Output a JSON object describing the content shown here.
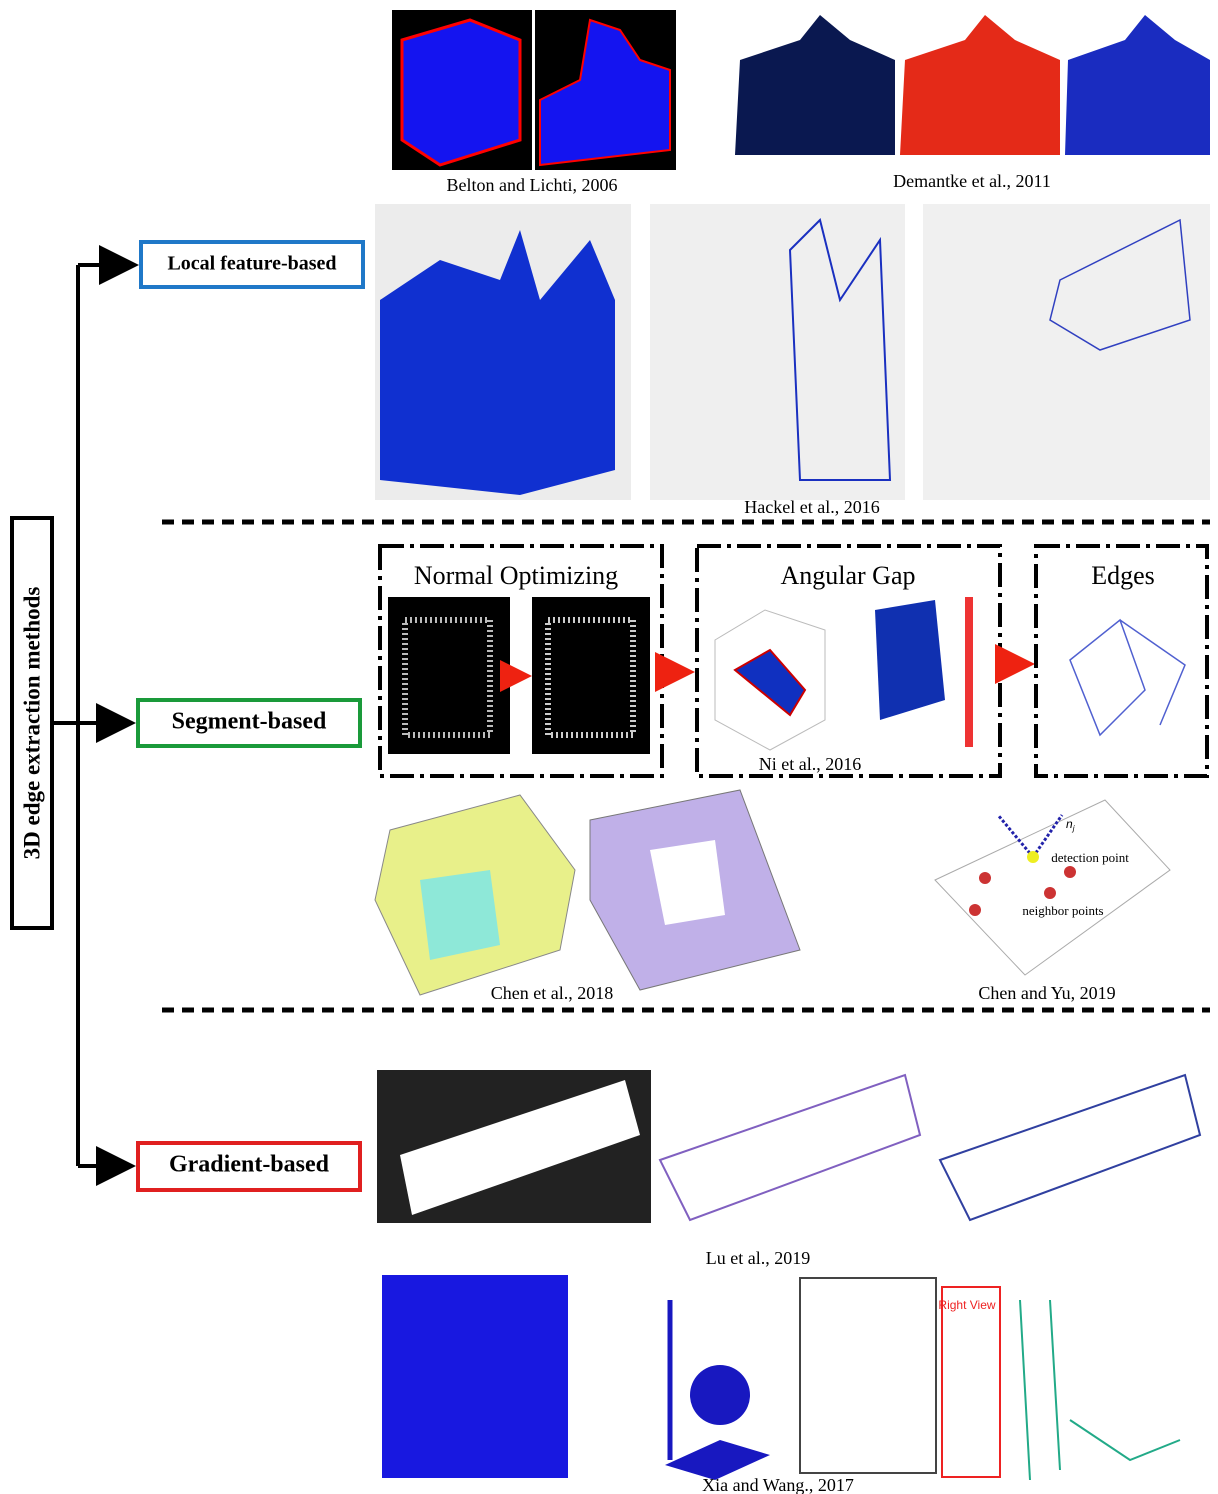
{
  "root": {
    "label": "3D edge extraction methods"
  },
  "categories": [
    {
      "label": "Local feature-based"
    },
    {
      "label": "Segment-based"
    },
    {
      "label": "Gradient-based"
    }
  ],
  "local_feature": {
    "captions": [
      "Belton and Lichti, 2006",
      "Demantke et al., 2011",
      "Hackel et al., 2016"
    ]
  },
  "segment": {
    "stages": [
      "Normal Optimizing",
      "Angular Gap",
      "Edges"
    ],
    "captions": [
      "Ni et al., 2016",
      "Chen et al., 2018",
      "Chen and Yu, 2019"
    ],
    "annotations": {
      "normal": "n",
      "normal_subscript": "j",
      "detection": "detection point",
      "neighbors": "neighbor points"
    }
  },
  "gradient": {
    "captions": [
      "Lu et al., 2019",
      "Xia and Wang., 2017"
    ],
    "annotations": {
      "view": "Right View"
    }
  }
}
